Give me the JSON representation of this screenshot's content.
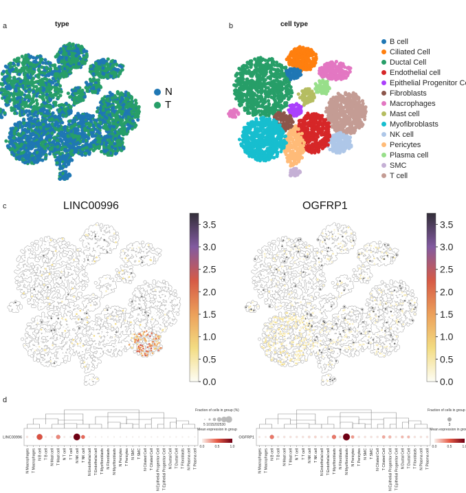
{
  "panels": {
    "a": "a",
    "b": "b",
    "c": "c",
    "d": "d"
  },
  "panel_a": {
    "title": "type",
    "legend": [
      {
        "label": "N",
        "color": "#1f77b4"
      },
      {
        "label": "T",
        "color": "#279e68"
      }
    ]
  },
  "panel_b": {
    "title": "cell type",
    "legend": [
      {
        "label": "B cell",
        "color": "#1f77b4"
      },
      {
        "label": "Ciliated Cell",
        "color": "#ff7f0e"
      },
      {
        "label": "Ductal Cell",
        "color": "#279e68"
      },
      {
        "label": "Endothelial cell",
        "color": "#d62728"
      },
      {
        "label": "Epithelial Progenitor Cell",
        "color": "#aa40fc"
      },
      {
        "label": "Fibroblasts",
        "color": "#8c564b"
      },
      {
        "label": "Macrophages",
        "color": "#e377c2"
      },
      {
        "label": "Mast cell",
        "color": "#b5bd61"
      },
      {
        "label": "Myofibroblasts",
        "color": "#17becf"
      },
      {
        "label": "NK cell",
        "color": "#aec7e8"
      },
      {
        "label": "Pericytes",
        "color": "#ffbb78"
      },
      {
        "label": "Plasma cell",
        "color": "#98df8a"
      },
      {
        "label": "SMC",
        "color": "#c5b0d5"
      },
      {
        "label": "T cell",
        "color": "#c49c94"
      }
    ]
  },
  "panel_c": [
    {
      "title": "LINC00996",
      "colorbar_ticks": [
        "0.0",
        "0.5",
        "1.0",
        "1.5",
        "2.0",
        "2.5",
        "3.0",
        "3.5"
      ],
      "colorbar_range": [
        0,
        3.75
      ],
      "high_in": "NK cell"
    },
    {
      "title": "OGFRP1",
      "colorbar_ticks": [
        "0.0",
        "0.5",
        "1.0",
        "1.5",
        "2.0",
        "2.5",
        "3.0",
        "3.5"
      ],
      "colorbar_range": [
        0,
        3.75
      ],
      "high_in": "Myofibroblasts"
    }
  ],
  "chart_data": [
    {
      "type": "scatter",
      "title": "type",
      "series": [
        {
          "name": "N"
        },
        {
          "name": "T"
        }
      ]
    },
    {
      "type": "scatter",
      "title": "cell type",
      "series": [
        {
          "name": "B cell"
        },
        {
          "name": "Ciliated Cell"
        },
        {
          "name": "Ductal Cell"
        },
        {
          "name": "Endothelial cell"
        },
        {
          "name": "Epithelial Progenitor Cell"
        },
        {
          "name": "Fibroblasts"
        },
        {
          "name": "Macrophages"
        },
        {
          "name": "Mast cell"
        },
        {
          "name": "Myofibroblasts"
        },
        {
          "name": "NK cell"
        },
        {
          "name": "Pericytes"
        },
        {
          "name": "Plasma cell"
        },
        {
          "name": "SMC"
        },
        {
          "name": "T cell"
        }
      ]
    },
    {
      "type": "dotplot",
      "gene": "LINC00996",
      "categories": [
        "N Macrophages",
        "T Macrophages",
        "N B cell",
        "T B cell",
        "N Mast cell",
        "T Mast cell",
        "N T cell",
        "T T cell",
        "N NK cell",
        "T NK cell",
        "N Endothelial cell",
        "T Endothelial cell",
        "T Myofibroblasts",
        "N Fibroblasts",
        "N Myofibroblasts",
        "N Pericytes",
        "T Pericytes",
        "N SMC",
        "T SMC",
        "N Ciliated Cell",
        "T Ciliated Cell",
        "N Epithelial Progenitor Cell",
        "T Epithelial Progenitor Cell",
        "N Ductal Cell",
        "T Ductal Cell",
        "T Fibroblasts",
        "N Plasma cell",
        "T Plasma cell"
      ],
      "mean_expression": [
        0.05,
        0,
        0.55,
        0.02,
        0.02,
        0.35,
        0.02,
        0.02,
        1.0,
        0.45,
        0,
        0,
        0,
        0,
        0,
        0,
        0,
        0,
        0,
        0,
        0,
        0,
        0,
        0,
        0,
        0,
        0,
        0
      ],
      "fraction_pct": [
        3,
        1,
        20,
        2,
        2,
        10,
        2,
        2,
        28,
        8,
        1,
        1,
        1,
        1,
        1,
        1,
        1,
        1,
        1,
        1,
        1,
        1,
        1,
        1,
        1,
        1,
        1,
        1
      ],
      "legend": {
        "size_title": "Fraction of cells in group (%)",
        "size_ticks": [
          "5",
          "10",
          "15",
          "20",
          "25",
          "30"
        ],
        "size_ticks_text": "5 1015202530",
        "color_title": "Mean expression in group",
        "color_ticks": [
          "0.0",
          "0.5",
          "1.0"
        ]
      }
    },
    {
      "type": "dotplot",
      "gene": "OGFRP1",
      "categories": [
        "N Macrophages",
        "T Macrophages",
        "N B cell",
        "T B cell",
        "N Mast cell",
        "T Mast cell",
        "N T cell",
        "T T cell",
        "N NK cell",
        "T NK cell",
        "N Endothelial cell",
        "T Endothelial cell",
        "T Myofibroblasts",
        "N Fibroblasts",
        "N Myofibroblasts",
        "N Pericytes",
        "T Pericytes",
        "N SMC",
        "T SMC",
        "N Ciliated Cell",
        "T Ciliated Cell",
        "N Epithelial Progenitor Cell",
        "T Epithelial Progenitor Cell",
        "N Ductal Cell",
        "T Ductal Cell",
        "T Fibroblasts",
        "N Plasma cell",
        "T Plasma cell"
      ],
      "mean_expression": [
        0.03,
        0.03,
        0.4,
        0.05,
        0.05,
        0.05,
        0.05,
        0.05,
        0.08,
        0.1,
        0.05,
        0.05,
        0.4,
        0.1,
        1.0,
        0.3,
        0.05,
        0.05,
        0.05,
        0.05,
        0.25,
        0.2,
        0.05,
        0.2,
        0.2,
        0.05,
        0.05,
        0.05
      ],
      "fraction_pct": [
        2,
        2,
        10,
        3,
        3,
        3,
        3,
        3,
        4,
        4,
        3,
        3,
        10,
        4,
        30,
        7,
        3,
        3,
        3,
        3,
        7,
        6,
        3,
        5,
        5,
        3,
        3,
        3
      ],
      "legend": {
        "size_title": "Fraction of cells in group (%)",
        "size_ticks": [
          "3"
        ],
        "size_ticks_text": "3",
        "color_title": "Mean expression in group",
        "color_ticks": [
          "0.0",
          "0.5",
          "1.0"
        ]
      }
    }
  ]
}
